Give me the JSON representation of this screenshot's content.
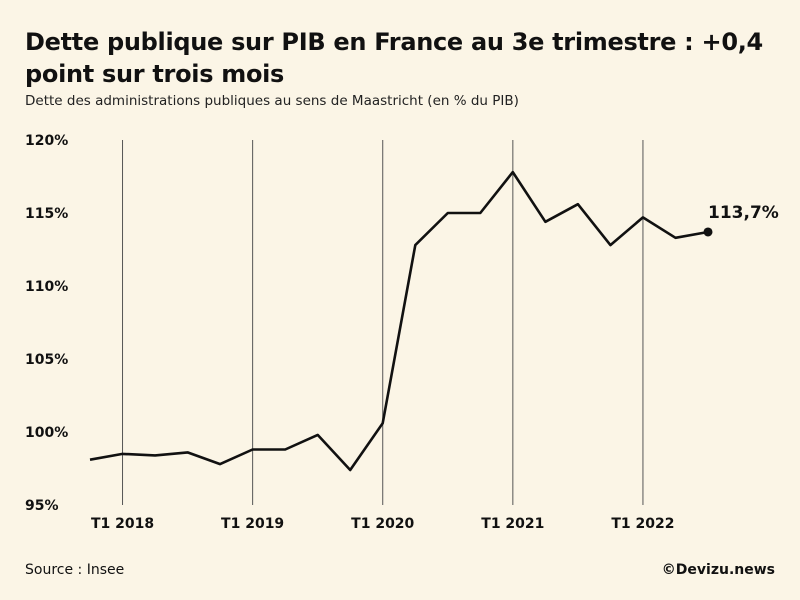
{
  "header": {
    "title": "Dette publique sur PIB en France au 3e trimestre : +0,4 point sur trois mois",
    "subtitle": "Dette des administrations publiques au sens de Maastricht (en % du PIB)"
  },
  "footer": {
    "source": "Source : Insee",
    "credit": "©Devizu.news"
  },
  "colors": {
    "background": "#fbf5e6",
    "line": "#111111",
    "gridline": "#555555"
  },
  "chart_data": {
    "type": "line",
    "title": "Dette publique sur PIB en France au 3e trimestre : +0,4 point sur trois mois",
    "subtitle": "Dette des administrations publiques au sens de Maastricht (en % du PIB)",
    "xlabel": "",
    "ylabel": "",
    "ylim": [
      95,
      120
    ],
    "yticks": [
      95,
      100,
      105,
      110,
      115,
      120
    ],
    "ytick_labels": [
      "95%",
      "100%",
      "105%",
      "110%",
      "115%",
      "120%"
    ],
    "x": [
      "T4 2017",
      "T1 2018",
      "T2 2018",
      "T3 2018",
      "T4 2018",
      "T1 2019",
      "T2 2019",
      "T3 2019",
      "T4 2019",
      "T1 2020",
      "T2 2020",
      "T3 2020",
      "T4 2020",
      "T1 2021",
      "T2 2021",
      "T3 2021",
      "T4 2021",
      "T1 2022",
      "T2 2022",
      "T3 2022"
    ],
    "xtick_labels": [
      "T1 2018",
      "T1 2019",
      "T1 2020",
      "T1 2021",
      "T1 2022"
    ],
    "xtick_indices": [
      1,
      5,
      9,
      13,
      17
    ],
    "vertical_gridlines": true,
    "series": [
      {
        "values": [
          98.1,
          98.5,
          98.4,
          98.6,
          97.8,
          98.8,
          98.8,
          99.8,
          97.4,
          100.6,
          112.8,
          115.0,
          115.0,
          117.8,
          114.4,
          115.6,
          112.8,
          114.7,
          113.3,
          113.7
        ]
      }
    ],
    "annotation": {
      "index": 19,
      "text": "113,7%"
    }
  }
}
